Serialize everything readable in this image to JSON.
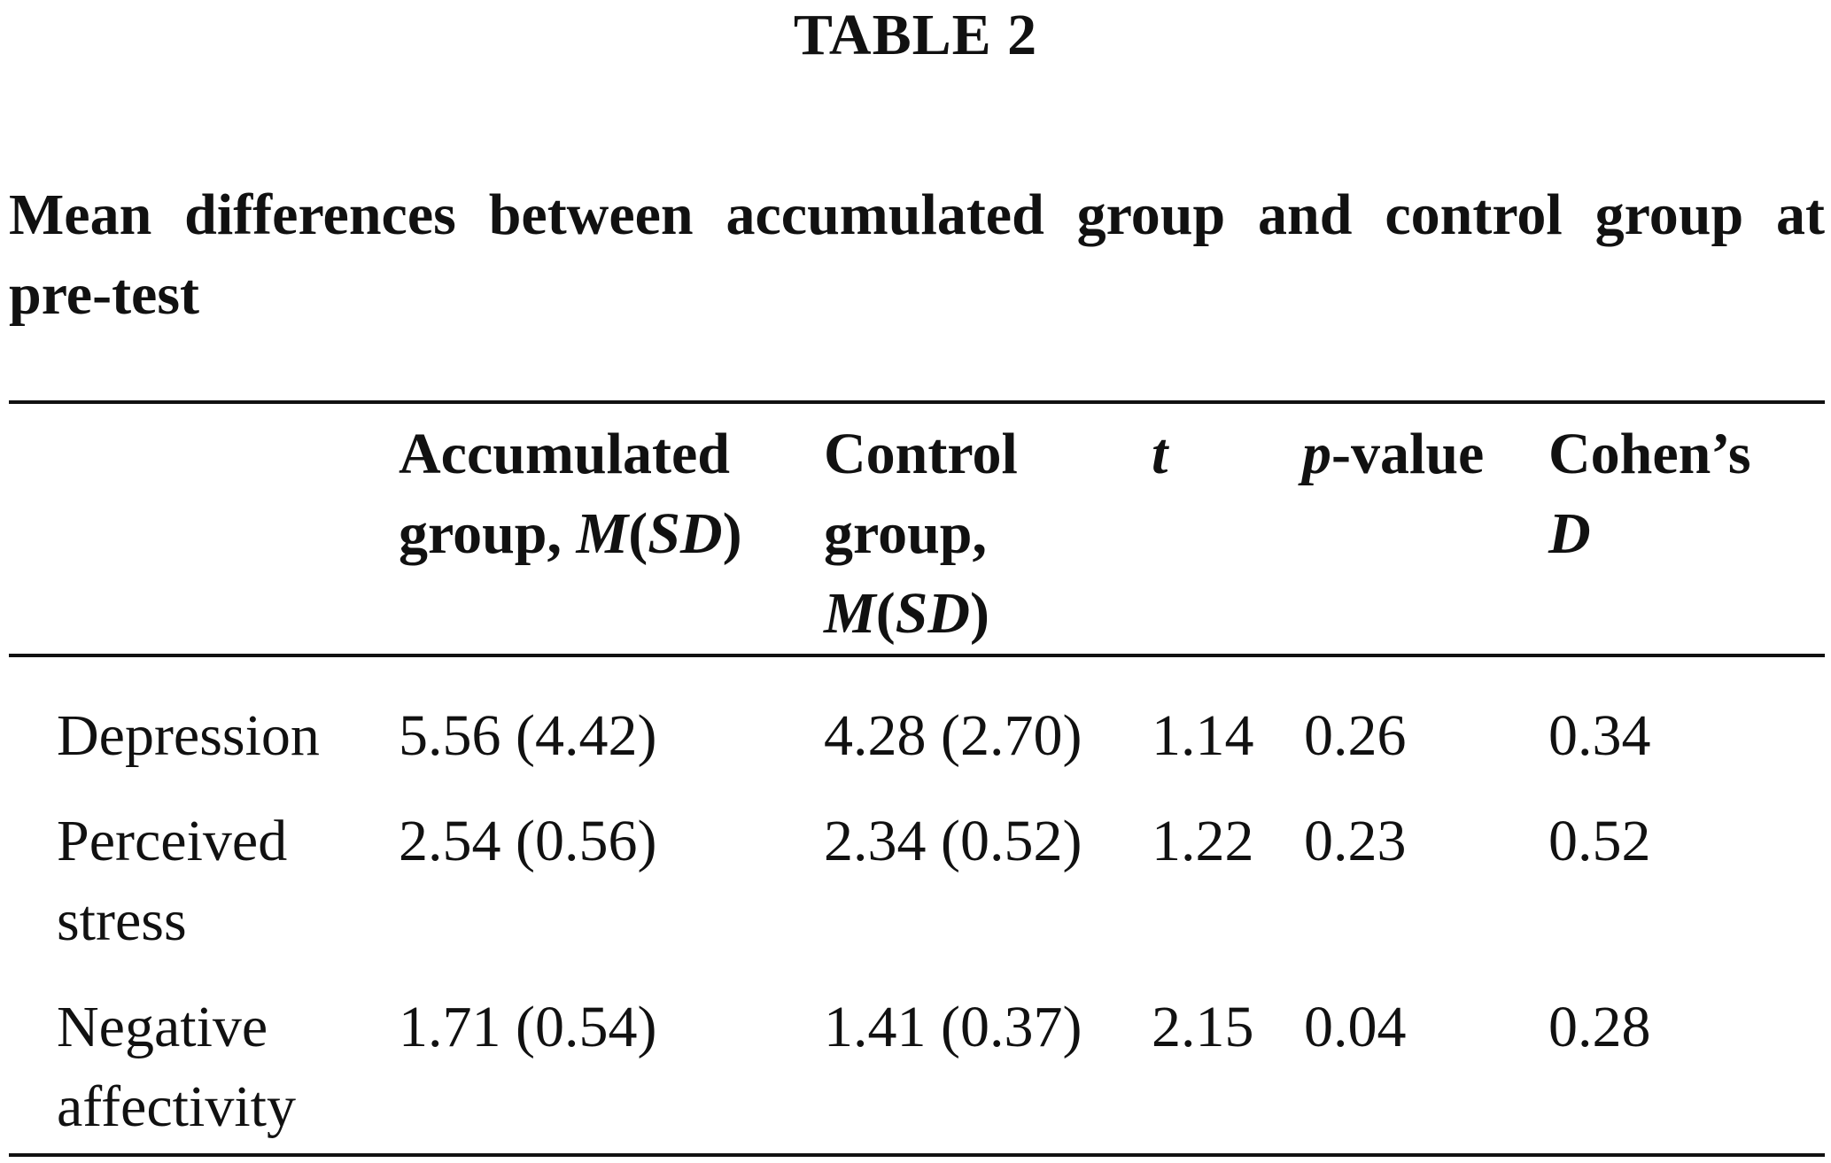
{
  "table": {
    "label": "TABLE 2",
    "caption": "Mean differences between accumulated group and control group at pre-test",
    "headers": {
      "col1": {
        "line1": "Accumulated",
        "line2": "group, ",
        "stat": "M",
        "open": "(",
        "sd": "SD",
        "close": ")"
      },
      "col2": {
        "line1": "Control",
        "line2": "group,",
        "stat": "M",
        "open": "(",
        "sd": "SD",
        "close": ")"
      },
      "col3": {
        "label": "t"
      },
      "col4": {
        "italic": "p",
        "rest": "-value"
      },
      "col5": {
        "line1": "Cohen’s",
        "line2": "D"
      }
    },
    "rows": [
      {
        "label": "Depression",
        "accumulated": "5.56 (4.42)",
        "control": "4.28 (2.70)",
        "t": "1.14",
        "p": "0.26",
        "d": "0.34"
      },
      {
        "label": "Perceived stress",
        "accumulated": "2.54 (0.56)",
        "control": "2.34 (0.52)",
        "t": "1.22",
        "p": "0.23",
        "d": "0.52"
      },
      {
        "label": "Negative affectivity",
        "accumulated": "1.71 (0.54)",
        "control": "1.41 (0.37)",
        "t": "2.15",
        "p": "0.04",
        "d": "0.28"
      }
    ]
  }
}
